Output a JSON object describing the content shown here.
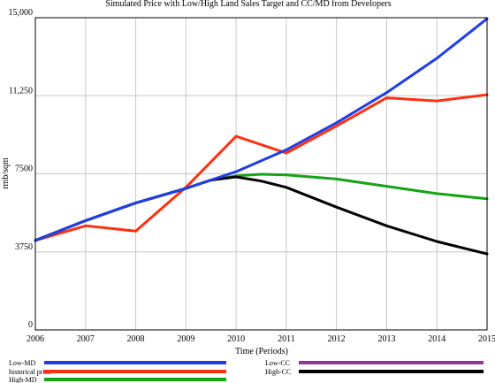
{
  "chart_data": {
    "type": "line",
    "title": "Simulated Price with Low/High Land Sales Target and CC/MD from Developers",
    "xlabel": "Time (Periods)",
    "ylabel": "rmb/sqm",
    "xlim": [
      2006,
      2015
    ],
    "ylim": [
      0,
      15000
    ],
    "x_ticks": [
      2006,
      2007,
      2008,
      2009,
      2010,
      2011,
      2012,
      2013,
      2014,
      2015
    ],
    "y_ticks": [
      0,
      3750,
      7500,
      11250,
      15000
    ],
    "y_tick_labels": [
      "0",
      "3750",
      "7500",
      "11,250",
      "15,000"
    ],
    "grid": true,
    "legend_position": "bottom",
    "series": [
      {
        "name": "Low-MD",
        "color": "#1f3fe6",
        "x": [
          2006,
          2007,
          2008,
          2009,
          2010,
          2011,
          2012,
          2013,
          2014,
          2015
        ],
        "y": [
          4300,
          5250,
          6100,
          6800,
          7600,
          8650,
          9950,
          11400,
          13050,
          14950
        ]
      },
      {
        "name": "historical price",
        "color": "#ff3010",
        "x": [
          2006,
          2007,
          2008,
          2009,
          2010,
          2011,
          2012,
          2013,
          2014,
          2015
        ],
        "y": [
          4300,
          5000,
          4750,
          6850,
          9300,
          8500,
          9800,
          11150,
          11000,
          11300
        ]
      },
      {
        "name": "High-MD",
        "color": "#17a317",
        "x": [
          2006,
          2007,
          2008,
          2009,
          2009.5,
          2010,
          2010.5,
          2011,
          2012,
          2013,
          2014,
          2015
        ],
        "y": [
          4300,
          5250,
          6100,
          6800,
          7200,
          7400,
          7480,
          7450,
          7250,
          6900,
          6550,
          6300
        ]
      },
      {
        "name": "Low-CC",
        "color": "#9b2f9b",
        "x": [],
        "y": []
      },
      {
        "name": "High-CC",
        "color": "#000000",
        "x": [
          2006,
          2007,
          2008,
          2009,
          2009.5,
          2010,
          2010.5,
          2011,
          2012,
          2013,
          2014,
          2015
        ],
        "y": [
          4300,
          5250,
          6100,
          6800,
          7200,
          7350,
          7150,
          6850,
          5900,
          5000,
          4250,
          3650
        ]
      }
    ]
  }
}
